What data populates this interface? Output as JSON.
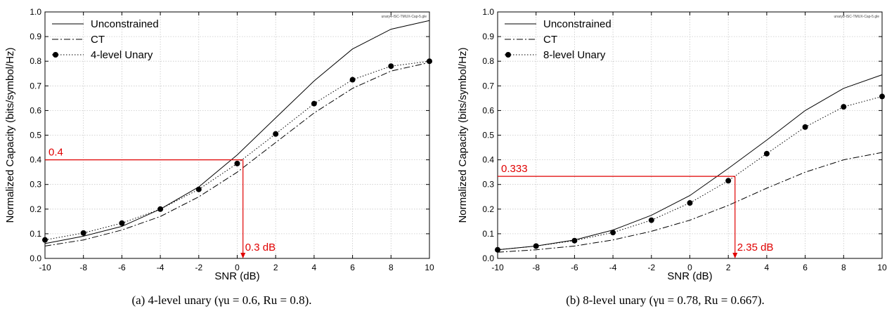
{
  "chart_data": [
    {
      "type": "line",
      "file_label": "unary4-ISC-TMUX-Cap-5.gle",
      "caption": "(a) 4-level unary (γu = 0.6, Ru = 0.8).",
      "xlabel": "SNR (dB)",
      "ylabel": "Normalized Capacity (bits/symbol/Hz)",
      "xlim": [
        -10,
        10
      ],
      "ylim": [
        0,
        1
      ],
      "xticks": [
        "-10",
        "-8",
        "-6",
        "-4",
        "-2",
        "0",
        "2",
        "4",
        "6",
        "8",
        "10"
      ],
      "yticks": [
        "0.0",
        "0.1",
        "0.2",
        "0.3",
        "0.4",
        "0.5",
        "0.6",
        "0.7",
        "0.8",
        "0.9",
        "1.0"
      ],
      "grid": true,
      "legend_position": "top-left",
      "x": [
        -10,
        -8,
        -6,
        -4,
        -2,
        0,
        2,
        4,
        6,
        8,
        10
      ],
      "series": [
        {
          "name": "Unconstrained",
          "style": "solid",
          "values": [
            0.06,
            0.09,
            0.13,
            0.2,
            0.29,
            0.42,
            0.57,
            0.72,
            0.85,
            0.93,
            0.965
          ]
        },
        {
          "name": "CT",
          "style": "dashdot",
          "values": [
            0.05,
            0.075,
            0.115,
            0.17,
            0.25,
            0.35,
            0.47,
            0.59,
            0.69,
            0.76,
            0.795
          ]
        },
        {
          "name": "4-level Unary",
          "style": "dotted-markers",
          "values": [
            0.075,
            0.103,
            0.143,
            0.2,
            0.28,
            0.385,
            0.505,
            0.628,
            0.725,
            0.78,
            0.8
          ]
        }
      ],
      "annotation": {
        "color": "#e00000",
        "y_value": 0.4,
        "y_label": "0.4",
        "x_value": 0.3,
        "x_label": "0.3 dB"
      }
    },
    {
      "type": "line",
      "file_label": "unary8-ISC-TMUX-Cap-5.gle",
      "caption": "(b) 8-level unary (γu = 0.78, Ru = 0.667).",
      "xlabel": "SNR (dB)",
      "ylabel": "Normalized Capacity (bits/symbol/Hz)",
      "xlim": [
        -10,
        10
      ],
      "ylim": [
        0,
        1
      ],
      "xticks": [
        "-10",
        "-8",
        "-6",
        "-4",
        "-2",
        "0",
        "2",
        "4",
        "6",
        "8",
        "10"
      ],
      "yticks": [
        "0.0",
        "0.1",
        "0.2",
        "0.3",
        "0.4",
        "0.5",
        "0.6",
        "0.7",
        "0.8",
        "0.9",
        "1.0"
      ],
      "grid": true,
      "legend_position": "top-left",
      "x": [
        -10,
        -8,
        -6,
        -4,
        -2,
        0,
        2,
        4,
        6,
        8,
        10
      ],
      "series": [
        {
          "name": "Unconstrained",
          "style": "solid",
          "values": [
            0.035,
            0.05,
            0.075,
            0.115,
            0.175,
            0.255,
            0.365,
            0.48,
            0.6,
            0.69,
            0.745
          ]
        },
        {
          "name": "CT",
          "style": "dashdot",
          "values": [
            0.025,
            0.035,
            0.05,
            0.075,
            0.11,
            0.155,
            0.215,
            0.285,
            0.35,
            0.4,
            0.43
          ]
        },
        {
          "name": "8-level Unary",
          "style": "dotted-markers",
          "values": [
            0.035,
            0.05,
            0.072,
            0.105,
            0.155,
            0.225,
            0.315,
            0.425,
            0.533,
            0.615,
            0.657
          ]
        }
      ],
      "annotation": {
        "color": "#e00000",
        "y_value": 0.333,
        "y_label": "0.333",
        "x_value": 2.35,
        "x_label": "2.35 dB"
      }
    }
  ]
}
